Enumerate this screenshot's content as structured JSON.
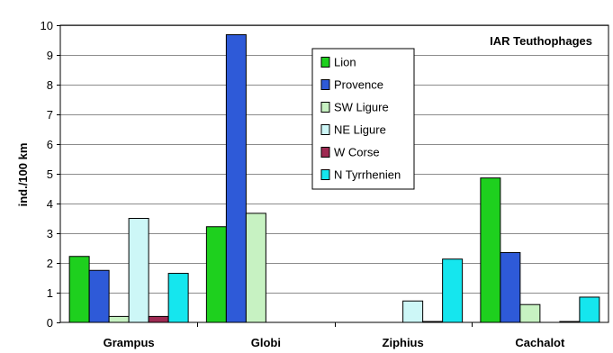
{
  "chart_data": {
    "type": "bar",
    "title": "IAR Teuthophages",
    "xlabel": "",
    "ylabel": "ind./100 km",
    "ylim": [
      0,
      10
    ],
    "yticks": [
      "0",
      "1",
      "2",
      "3",
      "4",
      "5",
      "6",
      "7",
      "8",
      "9",
      "10"
    ],
    "grid": true,
    "legend_position": "top-center",
    "categories": [
      "Grampus",
      "Globi",
      "Ziphius",
      "Cachalot"
    ],
    "series": [
      {
        "name": "Lion",
        "color": "#1ed01e",
        "values": [
          2.22,
          3.22,
          0,
          4.86
        ]
      },
      {
        "name": "Provence",
        "color": "#2e5ad8",
        "values": [
          1.75,
          9.68,
          0,
          2.35
        ]
      },
      {
        "name": "SW Ligure",
        "color": "#c7f2c2",
        "values": [
          0.2,
          3.67,
          0,
          0.6
        ]
      },
      {
        "name": "NE Ligure",
        "color": "#cdf7f7",
        "values": [
          3.5,
          0,
          0.72,
          0
        ]
      },
      {
        "name": "W Corse",
        "color": "#9e2a52",
        "values": [
          0.2,
          0,
          0.03,
          0.03
        ]
      },
      {
        "name": "N Tyrrhenien",
        "color": "#15e6ee",
        "values": [
          1.65,
          0,
          2.13,
          0.85
        ]
      }
    ]
  }
}
